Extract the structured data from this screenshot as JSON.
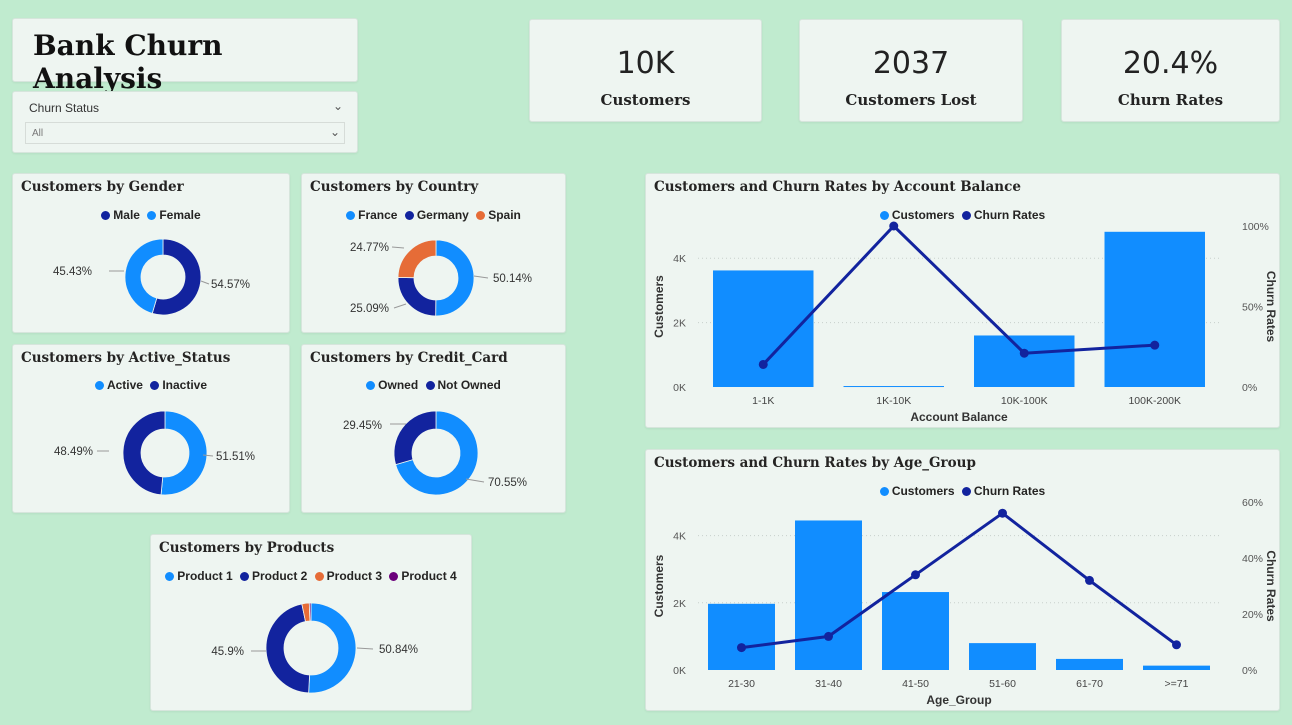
{
  "page_title": "Bank Churn Analysis",
  "slicer": {
    "label": "Churn Status",
    "value": "All"
  },
  "kpis": [
    {
      "value": "10K",
      "label": "Customers"
    },
    {
      "value": "2037",
      "label": "Customers Lost"
    },
    {
      "value": "20.4%",
      "label": "Churn Rates"
    }
  ],
  "colors": {
    "light_blue": "#118dff",
    "dark_blue": "#12239e",
    "orange": "#e66c37",
    "purple": "#6b007b"
  },
  "chart_data": [
    {
      "id": "gender",
      "type": "pie",
      "title": "Customers by Gender",
      "series": [
        {
          "name": "Male",
          "value": 54.57,
          "label": "54.57%",
          "color": "#12239e"
        },
        {
          "name": "Female",
          "value": 45.43,
          "label": "45.43%",
          "color": "#118dff"
        }
      ]
    },
    {
      "id": "country",
      "type": "pie",
      "title": "Customers by Country",
      "series": [
        {
          "name": "France",
          "value": 50.14,
          "label": "50.14%",
          "color": "#118dff"
        },
        {
          "name": "Germany",
          "value": 25.09,
          "label": "25.09%",
          "color": "#12239e"
        },
        {
          "name": "Spain",
          "value": 24.77,
          "label": "24.77%",
          "color": "#e66c37"
        }
      ]
    },
    {
      "id": "active",
      "type": "pie",
      "title": "Customers by Active_Status",
      "series": [
        {
          "name": "Active",
          "value": 51.51,
          "label": "51.51%",
          "color": "#118dff"
        },
        {
          "name": "Inactive",
          "value": 48.49,
          "label": "48.49%",
          "color": "#12239e"
        }
      ]
    },
    {
      "id": "credit",
      "type": "pie",
      "title": "Customers by Credit_Card",
      "series": [
        {
          "name": "Owned",
          "value": 70.55,
          "label": "70.55%",
          "color": "#118dff"
        },
        {
          "name": "Not Owned",
          "value": 29.45,
          "label": "29.45%",
          "color": "#12239e"
        }
      ]
    },
    {
      "id": "products",
      "type": "pie",
      "title": "Customers by Products",
      "series": [
        {
          "name": "Product 1",
          "value": 50.84,
          "label": "50.84%",
          "color": "#118dff"
        },
        {
          "name": "Product 2",
          "value": 45.9,
          "label": "45.9%",
          "color": "#12239e"
        },
        {
          "name": "Product 3",
          "value": 2.66,
          "label": "",
          "color": "#e66c37"
        },
        {
          "name": "Product 4",
          "value": 0.6,
          "label": "",
          "color": "#6b007b"
        }
      ]
    },
    {
      "id": "balance",
      "type": "bar",
      "title": "Customers and Churn Rates by Account Balance",
      "xlabel": "Account Balance",
      "ylabel": "Customers",
      "y2label": "Churn Rates",
      "legend": [
        "Customers",
        "Churn Rates"
      ],
      "categories": [
        "1-1K",
        "1K-10K",
        "10K-100K",
        "100K-200K"
      ],
      "series": [
        {
          "name": "Customers",
          "type": "bar",
          "values": [
            3620,
            30,
            1600,
            4820
          ],
          "color": "#118dff"
        },
        {
          "name": "Churn Rates",
          "type": "line",
          "values": [
            14,
            100,
            21,
            26
          ],
          "color": "#12239e"
        }
      ],
      "ylim": [
        0,
        5000
      ],
      "y2lim": [
        0,
        100
      ],
      "yticks": [
        "0K",
        "2K",
        "4K"
      ],
      "y2ticks": [
        "0%",
        "50%",
        "100%"
      ]
    },
    {
      "id": "age",
      "type": "bar",
      "title": "Customers and Churn Rates by Age_Group",
      "xlabel": "Age_Group",
      "ylabel": "Customers",
      "y2label": "Churn Rates",
      "legend": [
        "Customers",
        "Churn Rates"
      ],
      "categories": [
        "21-30",
        "31-40",
        "41-50",
        "51-60",
        "61-70",
        ">=71"
      ],
      "series": [
        {
          "name": "Customers",
          "type": "bar",
          "values": [
            1970,
            4450,
            2320,
            800,
            330,
            130
          ],
          "color": "#118dff"
        },
        {
          "name": "Churn Rates",
          "type": "line",
          "values": [
            8,
            12,
            34,
            56,
            32,
            9
          ],
          "color": "#12239e"
        }
      ],
      "ylim": [
        0,
        5000
      ],
      "y2lim": [
        0,
        60
      ],
      "yticks": [
        "0K",
        "2K",
        "4K"
      ],
      "y2ticks": [
        "0%",
        "20%",
        "40%",
        "60%"
      ]
    }
  ]
}
